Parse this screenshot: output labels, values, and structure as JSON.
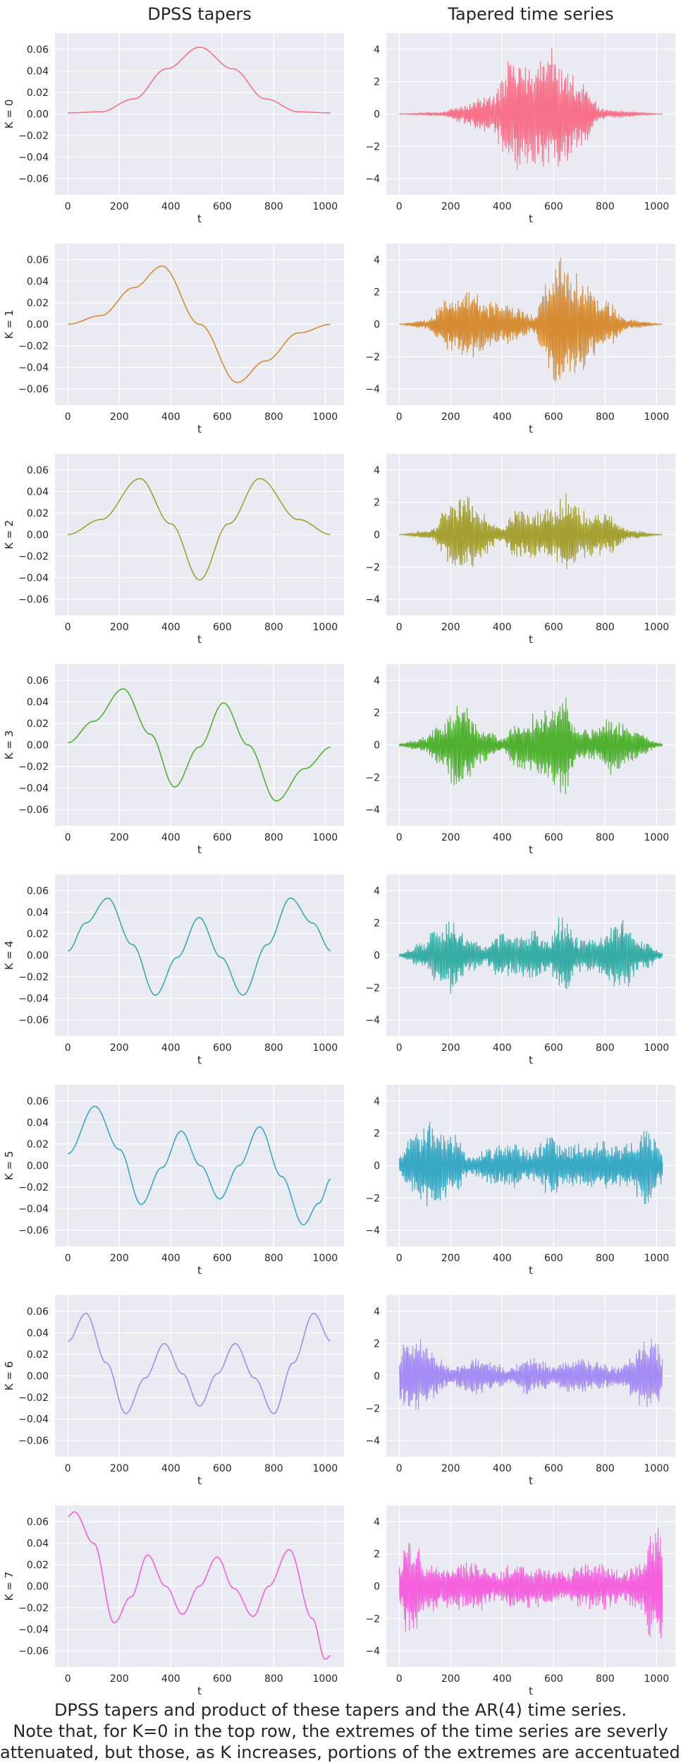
{
  "column_titles": [
    "DPSS tapers",
    "Tapered time series"
  ],
  "caption_lines": [
    "DPSS tapers and product of these tapers and the AR(4) time series.",
    "Note that, for K=0 in the top row, the extremes of the time series are severly",
    "attenuated, but those, as K increases, portions of the extremes are accentuated."
  ],
  "colors": [
    "#f77189",
    "#d58c32",
    "#a4a031",
    "#50b131",
    "#36ada4",
    "#38a9c5",
    "#a48cf4",
    "#f561dd"
  ],
  "chart_data": [
    {
      "type": "line",
      "panel": "taper",
      "row": 0,
      "ylabel": "K = 0",
      "xlabel": "t",
      "xlim": [
        -50,
        1073
      ],
      "ylim": [
        -0.075,
        0.075
      ],
      "xticks": [
        0,
        200,
        400,
        600,
        800,
        1000
      ],
      "yticks": [
        -0.06,
        -0.04,
        -0.02,
        0.0,
        0.02,
        0.04,
        0.06
      ],
      "yticklabels": [
        "−0.06",
        "−0.04",
        "−0.02",
        "0.00",
        "0.02",
        "0.04",
        "0.06"
      ],
      "x": [
        0,
        128,
        256,
        384,
        512,
        640,
        768,
        896,
        1023
      ],
      "y": [
        0.001,
        0.002,
        0.014,
        0.042,
        0.062,
        0.042,
        0.014,
        0.002,
        0.001
      ]
    },
    {
      "type": "line",
      "panel": "series",
      "row": 0,
      "xlabel": "t",
      "xlim": [
        -50,
        1073
      ],
      "ylim": [
        -5,
        5
      ],
      "xticks": [
        0,
        200,
        400,
        600,
        800,
        1000
      ],
      "yticks": [
        -4,
        -2,
        0,
        2,
        4
      ],
      "yticklabels": [
        "−4",
        "−2",
        "0",
        "2",
        "4"
      ],
      "n_points": 1024,
      "envelope_t": [
        0,
        150,
        250,
        350,
        450,
        500,
        550,
        600,
        650,
        700,
        800,
        1023
      ],
      "envelope_amp": [
        0.02,
        0.1,
        0.6,
        1.3,
        3.8,
        3.2,
        3.6,
        4.4,
        3.0,
        2.2,
        0.3,
        0.02
      ]
    },
    {
      "type": "line",
      "panel": "taper",
      "row": 1,
      "ylabel": "K = 1",
      "xlabel": "t",
      "xlim": [
        -50,
        1073
      ],
      "ylim": [
        -0.075,
        0.075
      ],
      "xticks": [
        0,
        200,
        400,
        600,
        800,
        1000
      ],
      "yticks": [
        -0.06,
        -0.04,
        -0.02,
        0.0,
        0.02,
        0.04,
        0.06
      ],
      "yticklabels": [
        "−0.06",
        "−0.04",
        "−0.02",
        "0.00",
        "0.02",
        "0.04",
        "0.06"
      ],
      "x": [
        0,
        128,
        256,
        366,
        512,
        658,
        768,
        896,
        1023
      ],
      "y": [
        0.0,
        0.008,
        0.034,
        0.054,
        0.0,
        -0.054,
        -0.034,
        -0.008,
        0.0
      ]
    },
    {
      "type": "line",
      "panel": "series",
      "row": 1,
      "xlabel": "t",
      "xlim": [
        -50,
        1073
      ],
      "ylim": [
        -5,
        5
      ],
      "xticks": [
        0,
        200,
        400,
        600,
        800,
        1000
      ],
      "yticks": [
        -4,
        -2,
        0,
        2,
        4
      ],
      "yticklabels": [
        "−4",
        "−2",
        "0",
        "2",
        "4"
      ],
      "n_points": 1024,
      "envelope_t": [
        0,
        100,
        200,
        280,
        350,
        450,
        520,
        580,
        620,
        680,
        800,
        900,
        1023
      ],
      "envelope_amp": [
        0.02,
        0.3,
        1.8,
        2.3,
        1.5,
        1.2,
        0.6,
        2.8,
        4.6,
        3.2,
        1.5,
        0.3,
        0.02
      ]
    },
    {
      "type": "line",
      "panel": "taper",
      "row": 2,
      "ylabel": "K = 2",
      "xlabel": "t",
      "xlim": [
        -50,
        1073
      ],
      "ylim": [
        -0.075,
        0.075
      ],
      "xticks": [
        0,
        200,
        400,
        600,
        800,
        1000
      ],
      "yticks": [
        -0.06,
        -0.04,
        -0.02,
        0.0,
        0.02,
        0.04,
        0.06
      ],
      "yticklabels": [
        "−0.06",
        "−0.04",
        "−0.02",
        "0.00",
        "0.02",
        "0.04",
        "0.06"
      ],
      "x": [
        0,
        128,
        280,
        400,
        512,
        624,
        745,
        896,
        1023
      ],
      "y": [
        0.0,
        0.014,
        0.052,
        0.01,
        -0.042,
        0.01,
        0.052,
        0.014,
        0.0
      ]
    },
    {
      "type": "line",
      "panel": "series",
      "row": 2,
      "xlabel": "t",
      "xlim": [
        -50,
        1073
      ],
      "ylim": [
        -5,
        5
      ],
      "xticks": [
        0,
        200,
        400,
        600,
        800,
        1000
      ],
      "yticks": [
        -4,
        -2,
        0,
        2,
        4
      ],
      "yticklabels": [
        "−4",
        "−2",
        "0",
        "2",
        "4"
      ],
      "n_points": 1024,
      "envelope_t": [
        0,
        120,
        200,
        250,
        320,
        400,
        450,
        520,
        600,
        650,
        720,
        800,
        900,
        1023
      ],
      "envelope_amp": [
        0.02,
        0.3,
        2.0,
        2.8,
        1.5,
        0.4,
        1.8,
        1.5,
        1.7,
        3.0,
        1.5,
        1.4,
        0.3,
        0.02
      ]
    },
    {
      "type": "line",
      "panel": "taper",
      "row": 3,
      "ylabel": "K = 3",
      "xlabel": "t",
      "xlim": [
        -50,
        1073
      ],
      "ylim": [
        -0.075,
        0.075
      ],
      "xticks": [
        0,
        200,
        400,
        600,
        800,
        1000
      ],
      "yticks": [
        -0.06,
        -0.04,
        -0.02,
        0.0,
        0.02,
        0.04,
        0.06
      ],
      "yticklabels": [
        "−0.06",
        "−0.04",
        "−0.02",
        "0.00",
        "0.02",
        "0.04",
        "0.06"
      ],
      "x": [
        0,
        100,
        215,
        320,
        415,
        510,
        605,
        700,
        810,
        920,
        1023
      ],
      "y": [
        0.002,
        0.022,
        0.052,
        0.01,
        -0.039,
        -0.002,
        0.039,
        0.0,
        -0.052,
        -0.022,
        -0.002
      ]
    },
    {
      "type": "line",
      "panel": "series",
      "row": 3,
      "xlabel": "t",
      "xlim": [
        -50,
        1073
      ],
      "ylim": [
        -5,
        5
      ],
      "xticks": [
        0,
        200,
        400,
        600,
        800,
        1000
      ],
      "yticks": [
        -4,
        -2,
        0,
        2,
        4
      ],
      "yticklabels": [
        "−4",
        "−2",
        "0",
        "2",
        "4"
      ],
      "n_points": 1024,
      "envelope_t": [
        0,
        100,
        160,
        230,
        320,
        400,
        460,
        520,
        600,
        630,
        700,
        760,
        830,
        900,
        1023
      ],
      "envelope_amp": [
        0.1,
        0.5,
        1.5,
        3.2,
        1.2,
        0.5,
        1.6,
        2.0,
        2.6,
        3.4,
        1.0,
        1.0,
        2.0,
        1.0,
        0.1
      ]
    },
    {
      "type": "line",
      "panel": "taper",
      "row": 4,
      "ylabel": "K = 4",
      "xlabel": "t",
      "xlim": [
        -50,
        1073
      ],
      "ylim": [
        -0.075,
        0.075
      ],
      "xticks": [
        0,
        200,
        400,
        600,
        800,
        1000
      ],
      "yticks": [
        -0.06,
        -0.04,
        -0.02,
        0.0,
        0.02,
        0.04,
        0.06
      ],
      "yticklabels": [
        "−0.06",
        "−0.04",
        "−0.02",
        "0.00",
        "0.02",
        "0.04",
        "0.06"
      ],
      "x": [
        0,
        70,
        155,
        250,
        340,
        425,
        510,
        595,
        680,
        775,
        865,
        950,
        1023
      ],
      "y": [
        0.004,
        0.03,
        0.053,
        0.01,
        -0.037,
        -0.002,
        0.035,
        -0.002,
        -0.037,
        0.01,
        0.053,
        0.03,
        0.004
      ]
    },
    {
      "type": "line",
      "panel": "series",
      "row": 4,
      "xlabel": "t",
      "xlim": [
        -50,
        1073
      ],
      "ylim": [
        -5,
        5
      ],
      "xticks": [
        0,
        200,
        400,
        600,
        800,
        1000
      ],
      "yticks": [
        -4,
        -2,
        0,
        2,
        4
      ],
      "yticklabels": [
        "−4",
        "−2",
        "0",
        "2",
        "4"
      ],
      "n_points": 1024,
      "envelope_t": [
        0,
        80,
        150,
        200,
        280,
        330,
        400,
        450,
        520,
        580,
        630,
        700,
        760,
        860,
        950,
        1023
      ],
      "envelope_amp": [
        0.1,
        0.8,
        1.8,
        2.5,
        1.0,
        0.6,
        1.5,
        1.2,
        1.6,
        1.0,
        2.8,
        1.2,
        1.0,
        2.4,
        1.0,
        0.2
      ]
    },
    {
      "type": "line",
      "panel": "taper",
      "row": 5,
      "ylabel": "K = 5",
      "xlabel": "t",
      "xlim": [
        -50,
        1073
      ],
      "ylim": [
        -0.075,
        0.075
      ],
      "xticks": [
        0,
        200,
        400,
        600,
        800,
        1000
      ],
      "yticks": [
        -0.06,
        -0.04,
        -0.02,
        0.0,
        0.02,
        0.04,
        0.06
      ],
      "yticklabels": [
        "−0.06",
        "−0.04",
        "−0.02",
        "0.00",
        "0.02",
        "0.04",
        "0.06"
      ],
      "x": [
        0,
        105,
        200,
        285,
        365,
        440,
        515,
        590,
        665,
        745,
        830,
        915,
        975,
        1023
      ],
      "y": [
        0.011,
        0.055,
        0.015,
        -0.036,
        -0.002,
        0.032,
        0.0,
        -0.031,
        0.0,
        0.036,
        -0.01,
        -0.055,
        -0.035,
        -0.012
      ]
    },
    {
      "type": "line",
      "panel": "series",
      "row": 5,
      "xlabel": "t",
      "xlim": [
        -50,
        1073
      ],
      "ylim": [
        -5,
        5
      ],
      "xticks": [
        0,
        200,
        400,
        600,
        800,
        1000
      ],
      "yticks": [
        -4,
        -2,
        0,
        2,
        4
      ],
      "yticklabels": [
        "−4",
        "−2",
        "0",
        "2",
        "4"
      ],
      "n_points": 1024,
      "envelope_t": [
        0,
        50,
        100,
        200,
        280,
        350,
        450,
        500,
        600,
        650,
        700,
        800,
        900,
        950,
        1023
      ],
      "envelope_amp": [
        0.6,
        2.0,
        2.8,
        2.2,
        0.6,
        1.2,
        1.6,
        1.0,
        2.0,
        1.2,
        1.5,
        1.6,
        1.5,
        2.9,
        1.2
      ]
    },
    {
      "type": "line",
      "panel": "taper",
      "row": 6,
      "ylabel": "K = 6",
      "xlabel": "t",
      "xlim": [
        -50,
        1073
      ],
      "ylim": [
        -0.075,
        0.075
      ],
      "xticks": [
        0,
        200,
        400,
        600,
        800,
        1000
      ],
      "yticks": [
        -0.06,
        -0.04,
        -0.02,
        0.0,
        0.02,
        0.04,
        0.06
      ],
      "yticklabels": [
        "−0.06",
        "−0.04",
        "−0.02",
        "0.00",
        "0.02",
        "0.04",
        "0.06"
      ],
      "x": [
        0,
        70,
        150,
        225,
        300,
        375,
        445,
        512,
        580,
        650,
        725,
        800,
        875,
        955,
        1023
      ],
      "y": [
        0.032,
        0.058,
        0.012,
        -0.035,
        -0.002,
        0.03,
        0.002,
        -0.028,
        0.002,
        0.03,
        -0.002,
        -0.035,
        0.012,
        0.058,
        0.032
      ]
    },
    {
      "type": "line",
      "panel": "series",
      "row": 6,
      "xlabel": "t",
      "xlim": [
        -50,
        1073
      ],
      "ylim": [
        -5,
        5
      ],
      "xticks": [
        0,
        200,
        400,
        600,
        800,
        1000
      ],
      "yticks": [
        -4,
        -2,
        0,
        2,
        4
      ],
      "yticklabels": [
        "−4",
        "−2",
        "0",
        "2",
        "4"
      ],
      "n_points": 1024,
      "envelope_t": [
        0,
        30,
        70,
        130,
        200,
        280,
        360,
        420,
        500,
        560,
        600,
        660,
        760,
        850,
        950,
        1000,
        1023
      ],
      "envelope_amp": [
        1.5,
        2.6,
        2.4,
        1.5,
        0.6,
        1.2,
        1.0,
        0.5,
        1.2,
        1.0,
        0.6,
        1.2,
        1.0,
        0.6,
        2.2,
        2.5,
        1.5
      ]
    },
    {
      "type": "line",
      "panel": "taper",
      "row": 7,
      "ylabel": "K = 7",
      "xlabel": "t",
      "xlim": [
        -50,
        1073
      ],
      "ylim": [
        -0.075,
        0.075
      ],
      "xticks": [
        0,
        200,
        400,
        600,
        800,
        1000
      ],
      "yticks": [
        -0.06,
        -0.04,
        -0.02,
        0.0,
        0.02,
        0.04,
        0.06
      ],
      "yticklabels": [
        "−0.06",
        "−0.04",
        "−0.02",
        "0.00",
        "0.02",
        "0.04",
        "0.06"
      ],
      "x": [
        0,
        25,
        100,
        180,
        245,
        310,
        380,
        445,
        510,
        580,
        645,
        720,
        780,
        860,
        950,
        1000,
        1023
      ],
      "y": [
        0.065,
        0.069,
        0.04,
        -0.034,
        -0.01,
        0.029,
        0.0,
        -0.026,
        0.0,
        0.027,
        -0.002,
        -0.028,
        0.0,
        0.034,
        -0.03,
        -0.068,
        -0.064
      ]
    },
    {
      "type": "line",
      "panel": "series",
      "row": 7,
      "xlabel": "t",
      "xlim": [
        -50,
        1073
      ],
      "ylim": [
        -5,
        5
      ],
      "xticks": [
        0,
        200,
        400,
        600,
        800,
        1000
      ],
      "yticks": [
        -4,
        -2,
        0,
        2,
        4
      ],
      "yticklabels": [
        "−4",
        "−2",
        "0",
        "2",
        "4"
      ],
      "n_points": 1024,
      "envelope_t": [
        0,
        30,
        60,
        100,
        180,
        240,
        320,
        380,
        450,
        520,
        580,
        640,
        720,
        800,
        860,
        940,
        980,
        1023
      ],
      "envelope_amp": [
        1.8,
        3.0,
        2.8,
        1.8,
        1.4,
        1.6,
        1.5,
        1.0,
        1.5,
        1.4,
        1.2,
        1.0,
        1.6,
        1.5,
        1.0,
        1.6,
        3.5,
        4.2
      ]
    }
  ]
}
